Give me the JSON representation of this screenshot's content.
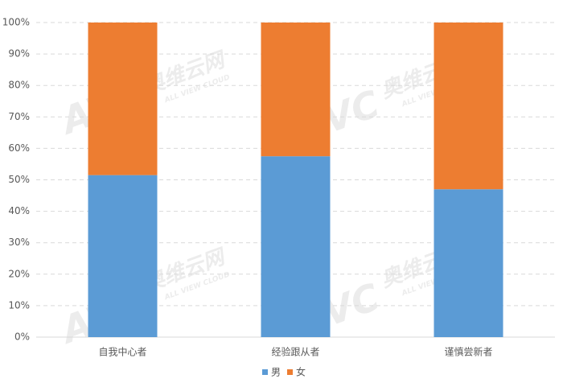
{
  "chart_data": {
    "type": "stacked-bar",
    "categories": [
      "自我中心者",
      "经验跟从者",
      "谨慎尝新者"
    ],
    "series": [
      {
        "name": "男",
        "color": "#5b9bd5",
        "values": [
          51.5,
          57.5,
          47
        ]
      },
      {
        "name": "女",
        "color": "#ed7d31",
        "values": [
          48.5,
          42.5,
          53
        ]
      }
    ],
    "ylim": [
      0,
      100
    ],
    "yticks": [
      {
        "value": 0,
        "label": "0%"
      },
      {
        "value": 10,
        "label": "10%"
      },
      {
        "value": 20,
        "label": "20%"
      },
      {
        "value": 30,
        "label": "30%"
      },
      {
        "value": 40,
        "label": "40%"
      },
      {
        "value": 50,
        "label": "50%"
      },
      {
        "value": 60,
        "label": "60%"
      },
      {
        "value": 70,
        "label": "70%"
      },
      {
        "value": 80,
        "label": "80%"
      },
      {
        "value": 90,
        "label": "90%"
      },
      {
        "value": 100,
        "label": "100%"
      }
    ],
    "grid": true,
    "legend": "bottom",
    "watermark": [
      "AVC",
      "奥维云网",
      "ALL VIEW CLOUD"
    ]
  }
}
